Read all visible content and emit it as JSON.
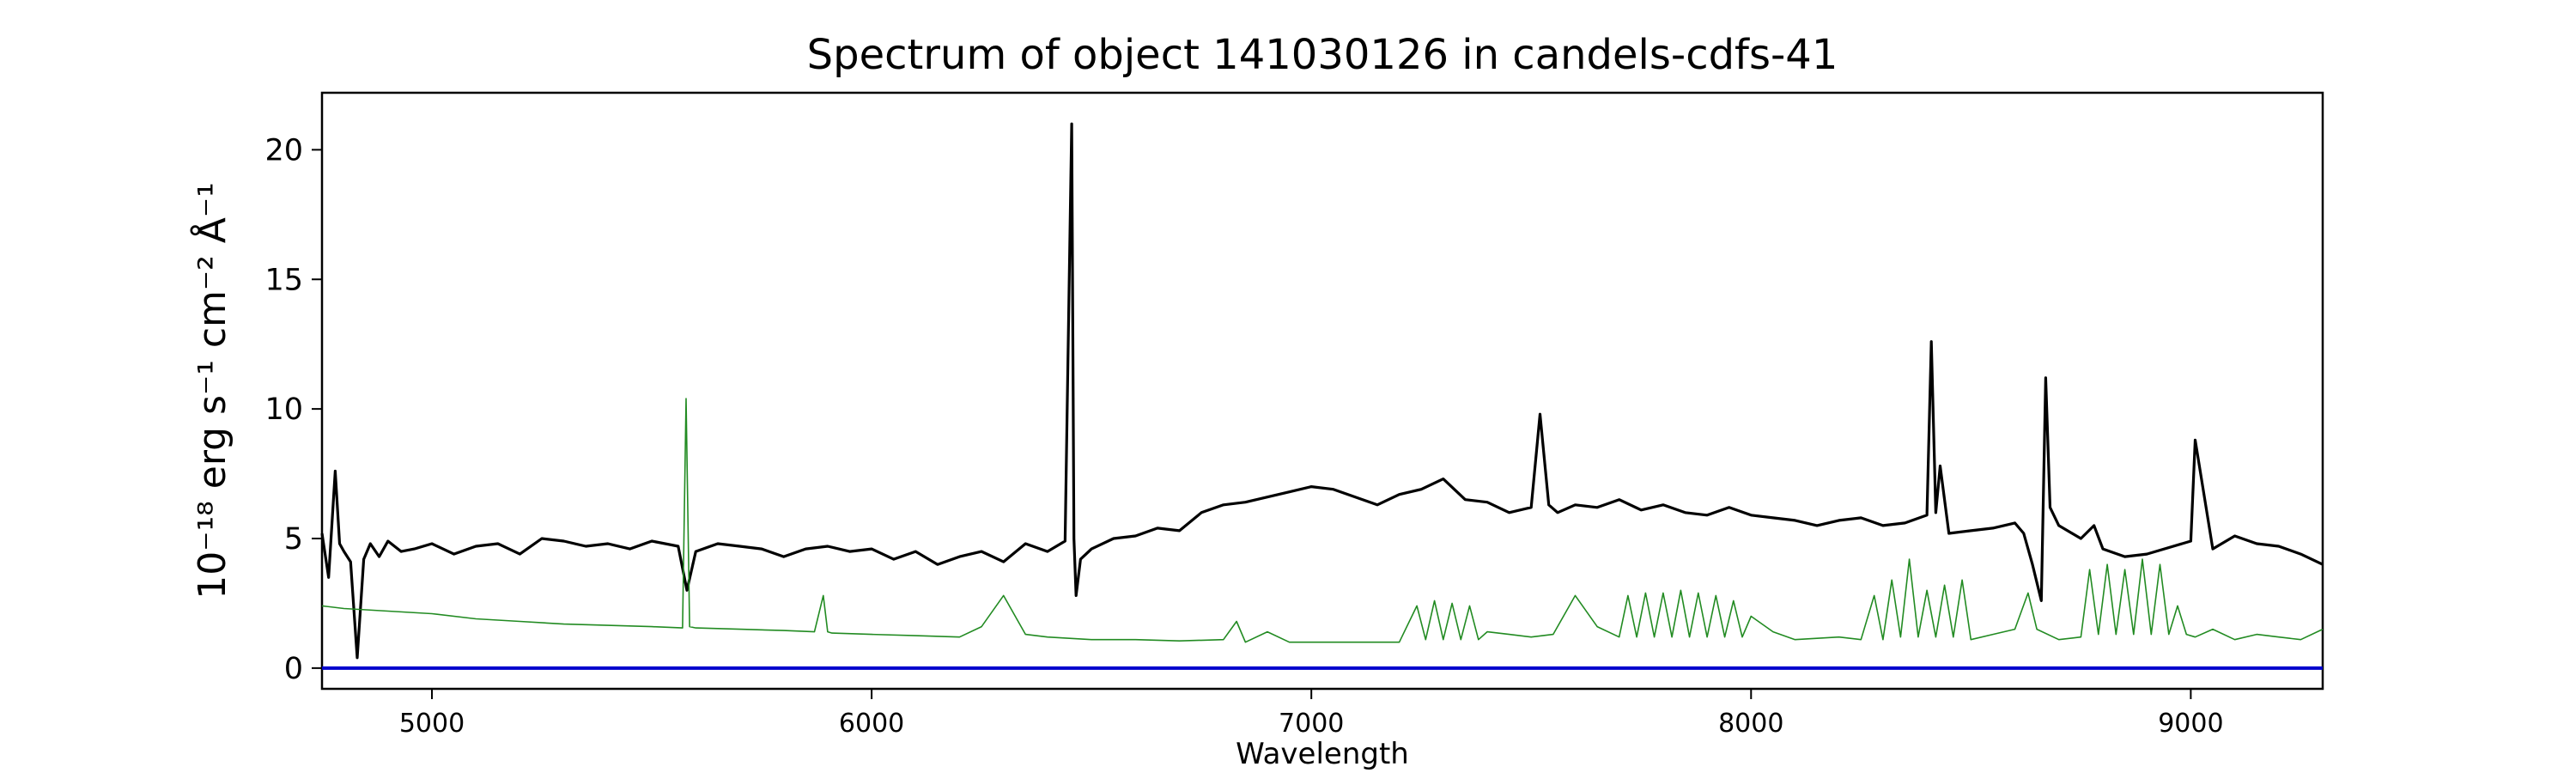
{
  "chart_data": {
    "type": "line",
    "title": "Spectrum of object 141030126 in candels-cdfs-41",
    "xlabel": "Wavelength",
    "ylabel": "10⁻¹⁸ erg s⁻¹ cm⁻² Å⁻¹",
    "xlim": [
      4750,
      9300
    ],
    "ylim": [
      -0.8,
      22.2
    ],
    "xticks": [
      5000,
      6000,
      7000,
      8000,
      9000
    ],
    "yticks": [
      0,
      5,
      10,
      15,
      20
    ],
    "grid": false,
    "series": [
      {
        "color": "#000000",
        "x": [
          4750,
          4765,
          4780,
          4790,
          4800,
          4815,
          4830,
          4845,
          4860,
          4880,
          4900,
          4930,
          4960,
          5000,
          5050,
          5100,
          5150,
          5200,
          5250,
          5300,
          5350,
          5400,
          5450,
          5500,
          5560,
          5580,
          5600,
          5650,
          5700,
          5750,
          5800,
          5850,
          5900,
          5950,
          6000,
          6050,
          6100,
          6150,
          6200,
          6250,
          6300,
          6350,
          6400,
          6440,
          6455,
          6460,
          6465,
          6475,
          6500,
          6550,
          6600,
          6650,
          6700,
          6750,
          6800,
          6850,
          6900,
          6950,
          7000,
          7050,
          7100,
          7150,
          7200,
          7250,
          7300,
          7350,
          7400,
          7450,
          7500,
          7520,
          7540,
          7560,
          7600,
          7650,
          7700,
          7750,
          7800,
          7850,
          7900,
          7950,
          8000,
          8050,
          8100,
          8150,
          8200,
          8250,
          8300,
          8350,
          8400,
          8410,
          8420,
          8430,
          8450,
          8500,
          8550,
          8600,
          8620,
          8640,
          8660,
          8670,
          8680,
          8700,
          8750,
          8780,
          8800,
          8850,
          8900,
          9000,
          9010,
          9050,
          9100,
          9150,
          9200,
          9250,
          9300
        ],
        "y": [
          5.2,
          3.5,
          7.6,
          4.8,
          4.5,
          4.1,
          0.4,
          4.2,
          4.8,
          4.3,
          4.9,
          4.5,
          4.6,
          4.8,
          4.4,
          4.7,
          4.8,
          4.4,
          5.0,
          4.9,
          4.7,
          4.8,
          4.6,
          4.9,
          4.7,
          3.0,
          4.5,
          4.8,
          4.7,
          4.6,
          4.3,
          4.6,
          4.7,
          4.5,
          4.6,
          4.2,
          4.5,
          4.0,
          4.3,
          4.5,
          4.1,
          4.8,
          4.5,
          4.9,
          21.0,
          5.0,
          2.8,
          4.2,
          4.6,
          5.0,
          5.1,
          5.4,
          5.3,
          6.0,
          6.3,
          6.4,
          6.6,
          6.8,
          7.0,
          6.9,
          6.6,
          6.3,
          6.7,
          6.9,
          7.3,
          6.5,
          6.4,
          6.0,
          6.2,
          9.8,
          6.3,
          6.0,
          6.3,
          6.2,
          6.5,
          6.1,
          6.3,
          6.0,
          5.9,
          6.2,
          5.9,
          5.8,
          5.7,
          5.5,
          5.7,
          5.8,
          5.5,
          5.6,
          5.9,
          12.6,
          6.0,
          7.8,
          5.2,
          5.3,
          5.4,
          5.6,
          5.2,
          4.0,
          2.6,
          11.2,
          6.2,
          5.5,
          5.0,
          5.5,
          4.6,
          4.3,
          4.4,
          4.9,
          8.8,
          4.6,
          5.1,
          4.8,
          4.7,
          4.4,
          4.0
        ]
      },
      {
        "color": "#228b22",
        "x": [
          4750,
          4800,
          4900,
          5000,
          5100,
          5200,
          5300,
          5400,
          5500,
          5570,
          5578,
          5586,
          5600,
          5700,
          5800,
          5870,
          5890,
          5900,
          5910,
          6000,
          6100,
          6200,
          6250,
          6300,
          6350,
          6400,
          6500,
          6600,
          6700,
          6800,
          6830,
          6850,
          6900,
          6950,
          7000,
          7100,
          7200,
          7240,
          7260,
          7280,
          7300,
          7320,
          7340,
          7360,
          7380,
          7400,
          7450,
          7500,
          7550,
          7600,
          7650,
          7700,
          7720,
          7740,
          7760,
          7780,
          7800,
          7820,
          7840,
          7860,
          7880,
          7900,
          7920,
          7940,
          7960,
          7980,
          8000,
          8050,
          8100,
          8200,
          8250,
          8280,
          8300,
          8320,
          8340,
          8360,
          8380,
          8400,
          8420,
          8440,
          8460,
          8480,
          8500,
          8550,
          8600,
          8630,
          8650,
          8700,
          8750,
          8770,
          8790,
          8810,
          8830,
          8850,
          8870,
          8890,
          8910,
          8930,
          8950,
          8970,
          8990,
          9010,
          9050,
          9100,
          9150,
          9200,
          9250,
          9300
        ],
        "y": [
          2.4,
          2.3,
          2.2,
          2.1,
          1.9,
          1.8,
          1.7,
          1.65,
          1.6,
          1.55,
          10.4,
          1.6,
          1.55,
          1.5,
          1.45,
          1.4,
          2.8,
          1.4,
          1.35,
          1.3,
          1.25,
          1.2,
          1.6,
          2.8,
          1.3,
          1.2,
          1.1,
          1.1,
          1.05,
          1.1,
          1.8,
          1.0,
          1.4,
          1.0,
          1.0,
          1.0,
          1.0,
          2.4,
          1.1,
          2.6,
          1.1,
          2.5,
          1.1,
          2.4,
          1.1,
          1.4,
          1.3,
          1.2,
          1.3,
          2.8,
          1.6,
          1.2,
          2.8,
          1.2,
          2.9,
          1.2,
          2.9,
          1.2,
          3.0,
          1.2,
          2.9,
          1.2,
          2.8,
          1.2,
          2.6,
          1.2,
          2.0,
          1.4,
          1.1,
          1.2,
          1.1,
          2.8,
          1.1,
          3.4,
          1.2,
          4.2,
          1.2,
          3.0,
          1.2,
          3.2,
          1.2,
          3.4,
          1.1,
          1.3,
          1.5,
          2.9,
          1.5,
          1.1,
          1.2,
          3.8,
          1.3,
          4.0,
          1.3,
          3.8,
          1.3,
          4.2,
          1.3,
          4.0,
          1.3,
          2.4,
          1.3,
          1.2,
          1.5,
          1.1,
          1.3,
          1.2,
          1.1,
          1.5
        ]
      },
      {
        "color": "#0000cd",
        "x": [
          4750,
          9300
        ],
        "y": [
          0,
          0
        ]
      }
    ]
  }
}
